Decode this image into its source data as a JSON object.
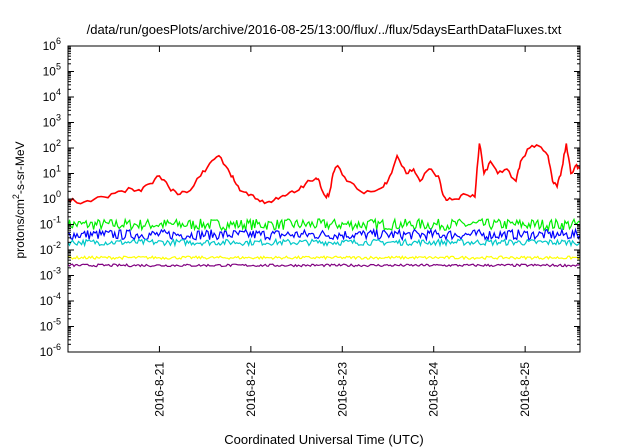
{
  "chart_data": {
    "type": "line",
    "title": "/data/run/goesPlots/archive/2016-08-25/13:00/flux/../flux/5daysEarthDataFluxes.txt",
    "xlabel": "Coordinated Universal Time (UTC)",
    "ylabel": {
      "base": "protons/cm",
      "sup": "2",
      "rest": "-s-sr-MeV"
    },
    "y_scale": "log",
    "ylim_exp": [
      -6,
      6
    ],
    "y_ticks": [
      {
        "exp": -6,
        "base": "10",
        "sup": "-6"
      },
      {
        "exp": -5,
        "base": "10",
        "sup": "-5"
      },
      {
        "exp": -4,
        "base": "10",
        "sup": "-4"
      },
      {
        "exp": -3,
        "base": "10",
        "sup": "-3"
      },
      {
        "exp": -2,
        "base": "10",
        "sup": "-2"
      },
      {
        "exp": -1,
        "base": "10",
        "sup": "-1"
      },
      {
        "exp": 0,
        "base": "10",
        "sup": "0"
      },
      {
        "exp": 1,
        "base": "10",
        "sup": "1"
      },
      {
        "exp": 2,
        "base": "10",
        "sup": "2"
      },
      {
        "exp": 3,
        "base": "10",
        "sup": "3"
      },
      {
        "exp": 4,
        "base": "10",
        "sup": "4"
      },
      {
        "exp": 5,
        "base": "10",
        "sup": "5"
      },
      {
        "exp": 6,
        "base": "10",
        "sup": "6"
      }
    ],
    "xlim_days": [
      20.0,
      25.6
    ],
    "x_ticks": [
      {
        "day": 21,
        "label": "2016-8-21"
      },
      {
        "day": 22,
        "label": "2016-8-22"
      },
      {
        "day": 23,
        "label": "2016-8-23"
      },
      {
        "day": 24,
        "label": "2016-8-24"
      },
      {
        "day": 25,
        "label": "2016-8-25"
      }
    ],
    "grid": false,
    "legend": "none",
    "series": [
      {
        "color": "#ff0000",
        "x": [
          20.0,
          20.1,
          20.25,
          20.4,
          20.55,
          20.7,
          20.8,
          20.9,
          21.0,
          21.1,
          21.2,
          21.3,
          21.45,
          21.55,
          21.65,
          21.75,
          21.82,
          21.9,
          22.0,
          22.1,
          22.2,
          22.3,
          22.4,
          22.5,
          22.6,
          22.7,
          22.75,
          22.8,
          22.85,
          22.9,
          22.95,
          23.05,
          23.2,
          23.35,
          23.45,
          23.52,
          23.6,
          23.7,
          23.78,
          23.85,
          23.95,
          24.05,
          24.1,
          24.15,
          24.25,
          24.35,
          24.45,
          24.5,
          24.55,
          24.62,
          24.7,
          24.8,
          24.9,
          24.95,
          25.05,
          25.15,
          25.25,
          25.3,
          25.35,
          25.4,
          25.45,
          25.5,
          25.55,
          25.6
        ],
        "y": [
          1.0,
          0.7,
          0.8,
          1.2,
          2.0,
          2.5,
          2.0,
          4.0,
          8.0,
          3.0,
          1.5,
          1.8,
          8.0,
          25,
          50,
          15,
          5,
          2.0,
          1.5,
          0.8,
          0.8,
          1.0,
          1.5,
          2.0,
          4.0,
          6.0,
          5.0,
          1.5,
          1.3,
          10,
          20,
          5.0,
          2.0,
          2.0,
          3.0,
          8.0,
          50,
          10,
          15,
          5.0,
          15,
          8.0,
          1.5,
          0.9,
          1.0,
          1.5,
          1.2,
          150,
          10,
          30,
          10,
          15,
          5.0,
          30,
          100,
          120,
          50,
          5.0,
          3.0,
          15,
          150,
          10,
          20,
          15
        ]
      },
      {
        "color": "#00ee00",
        "level": 0.1,
        "spread": 0.22
      },
      {
        "color": "#0000ff",
        "level": 0.04,
        "spread": 0.2
      },
      {
        "color": "#00c8c8",
        "level": 0.02,
        "spread": 0.12
      },
      {
        "color": "#ffff00",
        "level": 0.005,
        "spread": 0.06
      },
      {
        "color": "#800080",
        "level": 0.0025,
        "spread": 0.05
      }
    ]
  }
}
